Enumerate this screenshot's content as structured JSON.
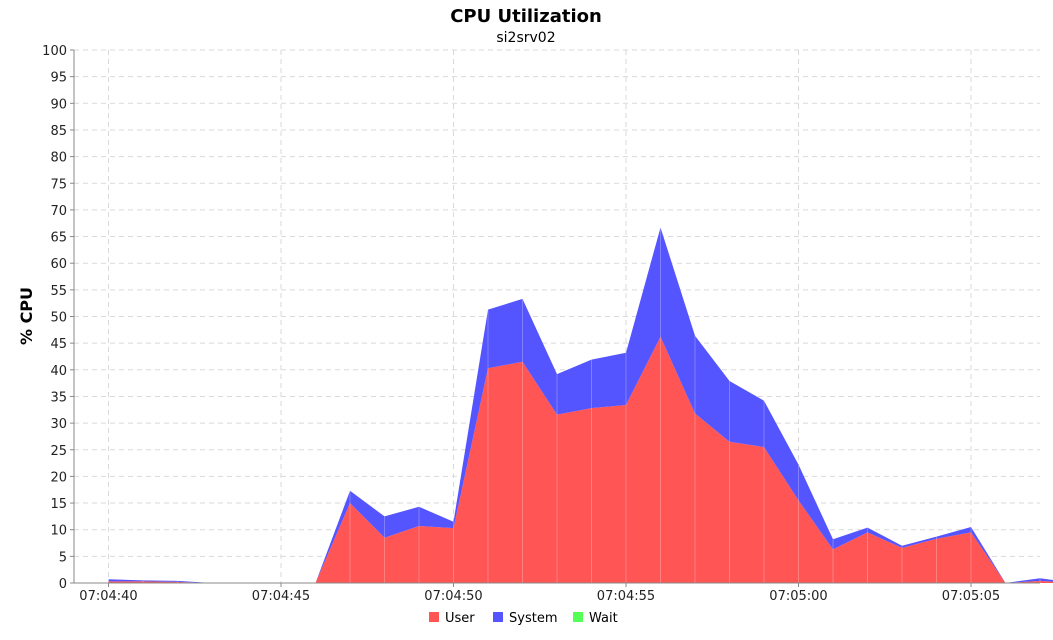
{
  "chart_data": {
    "type": "area",
    "stacked": true,
    "title": "CPU Utilization",
    "subtitle": "si2srv02",
    "xlabel": "",
    "ylabel": "% CPU",
    "ylim": [
      0,
      100
    ],
    "yticks": [
      0,
      5,
      10,
      15,
      20,
      25,
      30,
      35,
      40,
      45,
      50,
      55,
      60,
      65,
      70,
      75,
      80,
      85,
      90,
      95,
      100
    ],
    "xlim_seconds_from_first": [
      -1,
      27
    ],
    "xtick_labels": [
      "07:04:40",
      "07:04:45",
      "07:04:50",
      "07:04:55",
      "07:05:00",
      "07:05:05"
    ],
    "x": [
      "07:04:40",
      "07:04:41",
      "07:04:42",
      "07:04:43",
      "07:04:44",
      "07:04:45",
      "07:04:46",
      "07:04:47",
      "07:04:48",
      "07:04:49",
      "07:04:50",
      "07:04:51",
      "07:04:52",
      "07:04:53",
      "07:04:54",
      "07:04:55",
      "07:04:56",
      "07:04:57",
      "07:04:58",
      "07:04:59",
      "07:05:00",
      "07:05:01",
      "07:05:02",
      "07:05:03",
      "07:05:04",
      "07:05:05",
      "07:05:06",
      "07:05:07",
      "07:05:08"
    ],
    "series": [
      {
        "name": "User",
        "color": "#ff5555",
        "values": [
          0.3,
          0.3,
          0.2,
          0,
          0,
          0,
          0,
          15,
          8.5,
          10.7,
          10.3,
          40.3,
          41.5,
          31.6,
          32.8,
          33.4,
          46.2,
          31.8,
          26.5,
          25.5,
          15.5,
          6.3,
          9.5,
          6.6,
          8.3,
          9.5,
          0,
          0.4,
          0
        ]
      },
      {
        "name": "System",
        "color": "#5555ff",
        "values": [
          0.4,
          0.2,
          0.2,
          0,
          0,
          0,
          0,
          2.3,
          4,
          3.6,
          1.2,
          11,
          11.8,
          7.6,
          9.1,
          9.8,
          20.5,
          14.6,
          11.4,
          8.7,
          6.7,
          1.9,
          0.9,
          0.4,
          0.4,
          1,
          0,
          0.5,
          0
        ]
      },
      {
        "name": "Wait",
        "color": "#55ff55",
        "values": [
          0,
          0,
          0,
          0,
          0,
          0,
          0,
          0,
          0,
          0,
          0,
          0,
          0,
          0,
          0,
          0,
          0,
          0,
          0,
          0,
          0,
          0,
          0,
          0,
          0,
          0,
          0,
          0,
          0
        ]
      }
    ],
    "grid": true,
    "legend_position": "bottom-center"
  }
}
